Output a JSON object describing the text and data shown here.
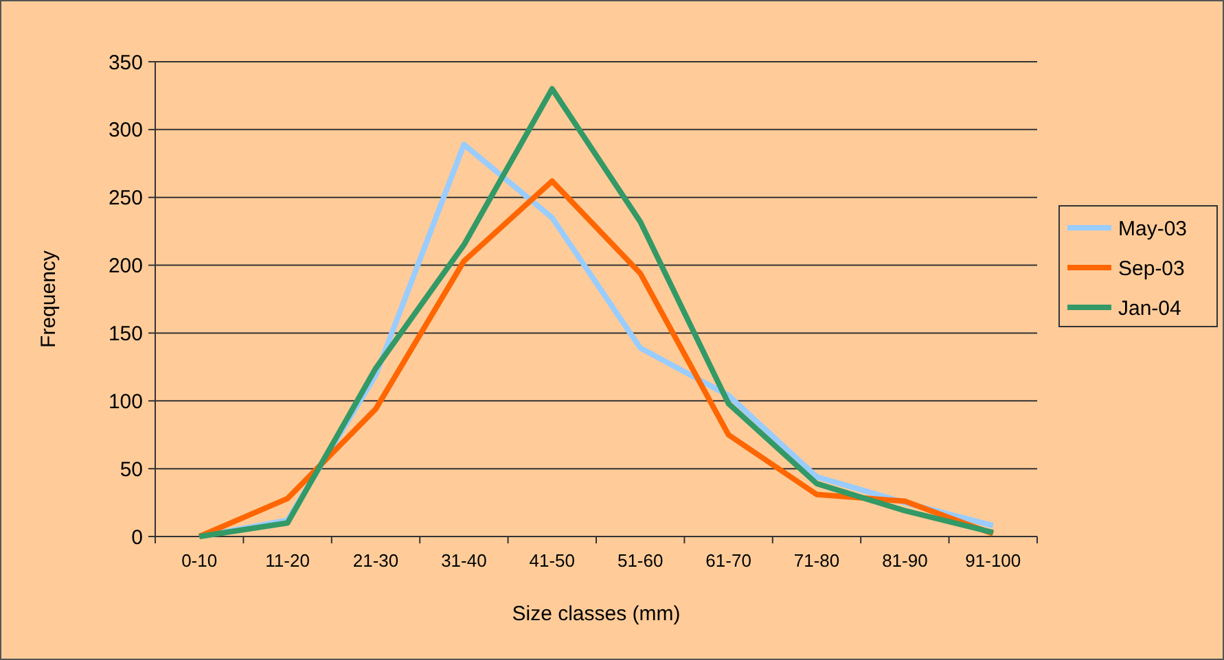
{
  "chart_data": {
    "type": "line",
    "xlabel": "Size classes (mm)",
    "ylabel": "Frequency",
    "categories": [
      "0-10",
      "11-20",
      "21-30",
      "31-40",
      "41-50",
      "51-60",
      "61-70",
      "71-80",
      "81-90",
      "91-100"
    ],
    "series": [
      {
        "name": "May-03",
        "color": "#99ccff",
        "values": [
          0,
          12,
          119,
          289,
          235,
          139,
          104,
          44,
          25,
          8
        ]
      },
      {
        "name": "Sep-03",
        "color": "#ff6600",
        "values": [
          0,
          28,
          94,
          203,
          262,
          194,
          75,
          31,
          26,
          2
        ]
      },
      {
        "name": "Jan-04",
        "color": "#339966",
        "values": [
          0,
          10,
          124,
          215,
          330,
          232,
          98,
          39,
          19,
          3
        ]
      }
    ],
    "ylim": [
      0,
      350
    ],
    "yticks": [
      0,
      50,
      100,
      150,
      200,
      250,
      300,
      350
    ],
    "grid": "y",
    "legend": "right",
    "marker": "none",
    "line_style": "solid"
  }
}
